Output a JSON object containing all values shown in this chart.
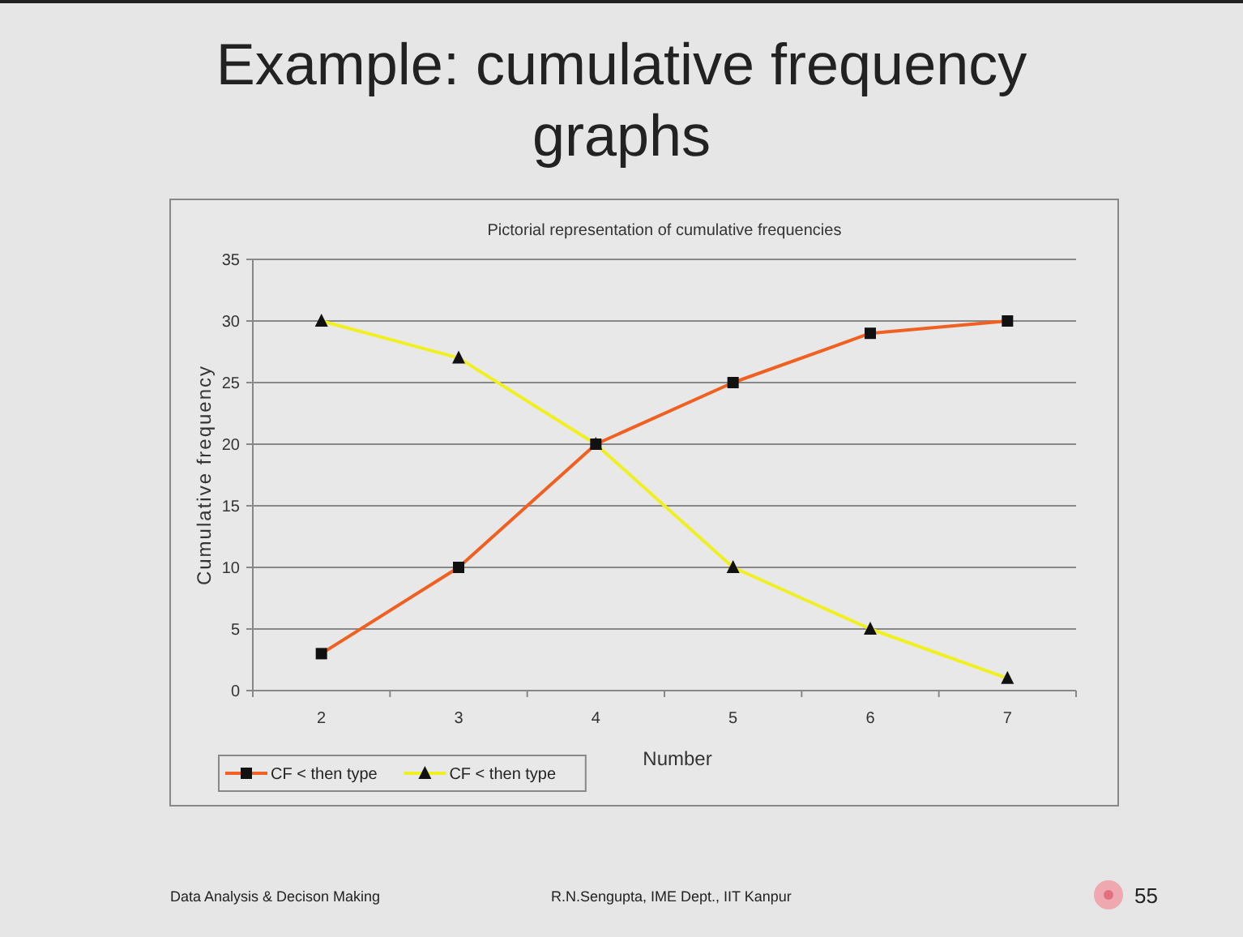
{
  "chart_data": {
    "type": "line",
    "title": "Example: cumulative frequency graphs",
    "subtitle": "Pictorial representation of cumulative frequencies",
    "xlabel": "Number",
    "ylabel": "Cumulative frequency",
    "categories": [
      "2",
      "3",
      "4",
      "5",
      "6",
      "7"
    ],
    "series": [
      {
        "name": "CF < then type",
        "color": "#f06020",
        "marker": "square",
        "values": [
          3,
          10,
          20,
          25,
          29,
          30
        ]
      },
      {
        "name": "CF < then type",
        "color": "#f0f020",
        "marker": "triangle",
        "values": [
          30,
          27,
          20,
          10,
          5,
          1
        ]
      }
    ],
    "ylim": [
      0,
      35
    ],
    "yticks": [
      0,
      5,
      10,
      15,
      20,
      25,
      30,
      35
    ],
    "grid": "y",
    "legend": "bottom left",
    "line_style": "solid",
    "annotations": [
      "Data Analysis & Decison Making",
      "R.N.Sengupta, IME Dept., IIT Kanpur",
      "55"
    ]
  }
}
